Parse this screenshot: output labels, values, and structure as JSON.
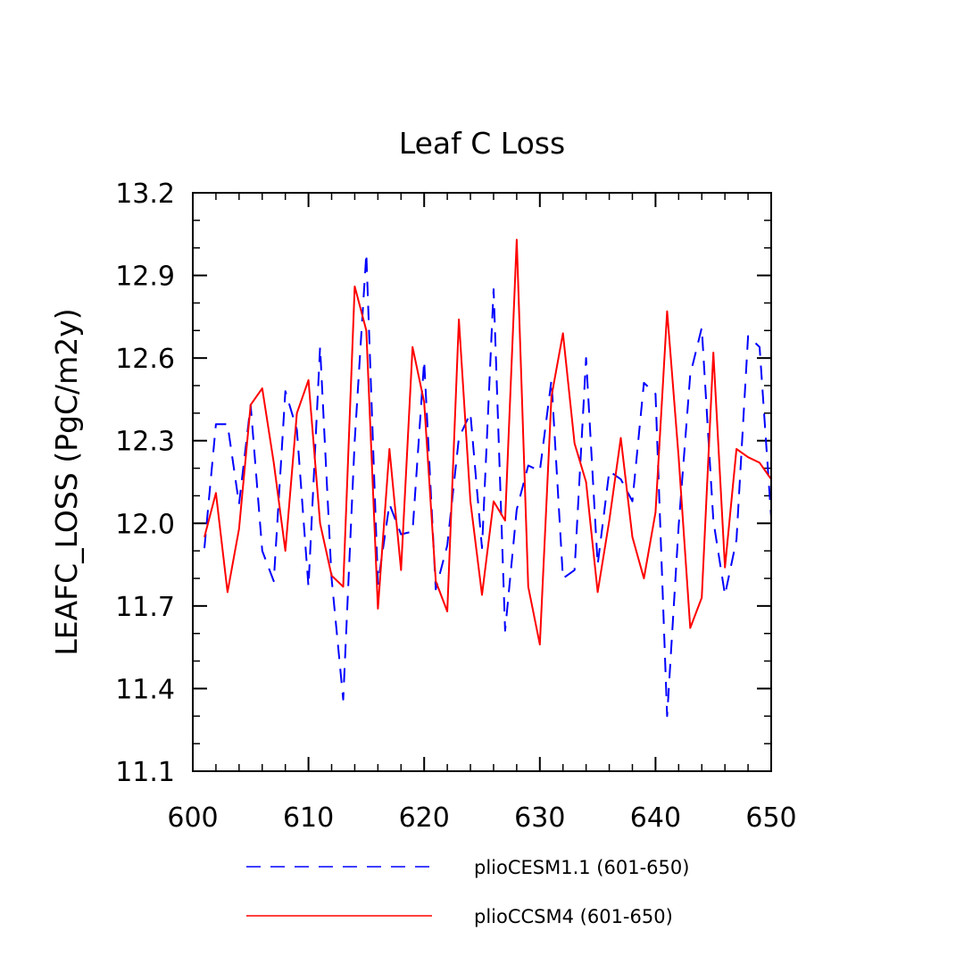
{
  "chart_data": {
    "type": "line",
    "title": "Leaf C Loss",
    "xlabel": "",
    "ylabel": "LEAFC_LOSS  (PgC/m2y)",
    "xlim": [
      600,
      650
    ],
    "ylim": [
      11.1,
      13.2
    ],
    "x_ticks": [
      600,
      610,
      620,
      630,
      640,
      650
    ],
    "x_tick_labels": [
      "600",
      "610",
      "620",
      "630",
      "640",
      "650"
    ],
    "y_ticks": [
      11.1,
      11.4,
      11.7,
      12.0,
      12.3,
      12.6,
      12.9,
      13.2
    ],
    "y_tick_labels": [
      "11.1",
      "11.4",
      "11.7",
      "12.0",
      "12.3",
      "12.6",
      "12.9",
      "13.2"
    ],
    "grid": false,
    "legend_position": "bottom",
    "x": [
      601,
      602,
      603,
      604,
      605,
      606,
      607,
      608,
      609,
      610,
      611,
      612,
      613,
      614,
      615,
      616,
      617,
      618,
      619,
      620,
      621,
      622,
      623,
      624,
      625,
      626,
      627,
      628,
      629,
      630,
      631,
      632,
      633,
      634,
      635,
      636,
      637,
      638,
      639,
      640,
      641,
      642,
      643,
      644,
      645,
      646,
      647,
      648,
      649,
      650
    ],
    "series": [
      {
        "name": "plioCESM1.1 (601-650)",
        "color": "#0000ff",
        "dash": "dashed",
        "values": [
          11.91,
          12.36,
          12.36,
          12.07,
          12.43,
          11.9,
          11.79,
          12.48,
          12.34,
          11.77,
          12.64,
          11.8,
          11.36,
          12.3,
          12.98,
          11.78,
          12.07,
          11.96,
          11.97,
          12.59,
          11.76,
          11.92,
          12.31,
          12.4,
          11.91,
          12.85,
          11.61,
          12.05,
          12.21,
          12.19,
          12.52,
          11.8,
          11.83,
          12.6,
          11.85,
          12.19,
          12.16,
          12.08,
          12.51,
          12.47,
          11.3,
          11.99,
          12.54,
          12.71,
          12.01,
          11.74,
          11.94,
          12.68,
          12.64,
          12.02
        ]
      },
      {
        "name": "plioCCSM4 (601-650)",
        "color": "#ff0000",
        "dash": "solid",
        "values": [
          11.95,
          12.11,
          11.75,
          11.98,
          12.43,
          12.49,
          12.22,
          11.9,
          12.4,
          12.52,
          12.0,
          11.81,
          11.77,
          12.86,
          12.7,
          11.69,
          12.27,
          11.83,
          12.64,
          12.44,
          11.79,
          11.68,
          12.74,
          12.08,
          11.74,
          12.08,
          12.01,
          13.03,
          11.77,
          11.56,
          12.46,
          12.69,
          12.29,
          12.15,
          11.75,
          12.01,
          12.31,
          11.95,
          11.8,
          12.04,
          12.77,
          12.24,
          11.62,
          11.73,
          12.62,
          11.84,
          12.27,
          12.24,
          12.22,
          12.16
        ]
      }
    ]
  }
}
